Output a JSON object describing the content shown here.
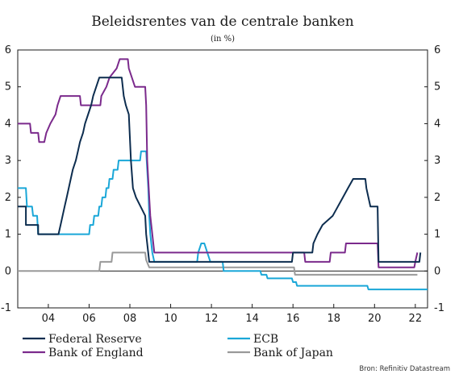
{
  "chart_data": {
    "type": "line",
    "title": "Beleidsrentes van de centrale banken",
    "subtitle": "(in %)",
    "source": "Bron: Refinitiv Datastream",
    "x_range": [
      2002.5,
      2022.6
    ],
    "x_ticks": [
      {
        "value": 2004,
        "label": "04"
      },
      {
        "value": 2006,
        "label": "06"
      },
      {
        "value": 2008,
        "label": "08"
      },
      {
        "value": 2010,
        "label": "10"
      },
      {
        "value": 2012,
        "label": "12"
      },
      {
        "value": 2014,
        "label": "14"
      },
      {
        "value": 2016,
        "label": "16"
      },
      {
        "value": 2018,
        "label": "18"
      },
      {
        "value": 2020,
        "label": "20"
      },
      {
        "value": 2022,
        "label": "22"
      }
    ],
    "ylim": [
      -1,
      6
    ],
    "y_ticks": [
      "-1",
      "0",
      "1",
      "2",
      "3",
      "4",
      "5",
      "6"
    ],
    "zero_line": true,
    "legend_position": "bottom",
    "series": [
      {
        "name": "Federal Reserve",
        "color": "#0d2d4f",
        "points": [
          [
            2002.5,
            1.75
          ],
          [
            2002.9,
            1.75
          ],
          [
            2002.9,
            1.25
          ],
          [
            2003.5,
            1.25
          ],
          [
            2003.5,
            1.0
          ],
          [
            2004.5,
            1.0
          ],
          [
            2004.6,
            1.25
          ],
          [
            2004.7,
            1.5
          ],
          [
            2004.8,
            1.75
          ],
          [
            2004.9,
            2.0
          ],
          [
            2005.0,
            2.25
          ],
          [
            2005.1,
            2.5
          ],
          [
            2005.2,
            2.75
          ],
          [
            2005.35,
            3.0
          ],
          [
            2005.45,
            3.25
          ],
          [
            2005.55,
            3.5
          ],
          [
            2005.7,
            3.75
          ],
          [
            2005.8,
            4.0
          ],
          [
            2005.95,
            4.25
          ],
          [
            2006.1,
            4.5
          ],
          [
            2006.2,
            4.75
          ],
          [
            2006.35,
            5.0
          ],
          [
            2006.5,
            5.25
          ],
          [
            2007.6,
            5.25
          ],
          [
            2007.7,
            4.75
          ],
          [
            2007.8,
            4.5
          ],
          [
            2007.95,
            4.25
          ],
          [
            2008.05,
            3.0
          ],
          [
            2008.15,
            2.25
          ],
          [
            2008.3,
            2.0
          ],
          [
            2008.75,
            1.5
          ],
          [
            2008.8,
            1.0
          ],
          [
            2008.95,
            0.25
          ],
          [
            2015.95,
            0.25
          ],
          [
            2016.0,
            0.5
          ],
          [
            2016.95,
            0.5
          ],
          [
            2017.0,
            0.75
          ],
          [
            2017.2,
            1.0
          ],
          [
            2017.45,
            1.25
          ],
          [
            2017.95,
            1.5
          ],
          [
            2018.2,
            1.75
          ],
          [
            2018.45,
            2.0
          ],
          [
            2018.7,
            2.25
          ],
          [
            2018.95,
            2.5
          ],
          [
            2019.55,
            2.5
          ],
          [
            2019.6,
            2.25
          ],
          [
            2019.7,
            2.0
          ],
          [
            2019.8,
            1.75
          ],
          [
            2020.15,
            1.75
          ],
          [
            2020.2,
            0.25
          ],
          [
            2022.2,
            0.25
          ],
          [
            2022.25,
            0.5
          ]
        ]
      },
      {
        "name": "ECB",
        "color": "#1aa7d8",
        "points": [
          [
            2002.5,
            2.25
          ],
          [
            2002.9,
            2.25
          ],
          [
            2002.95,
            1.75
          ],
          [
            2003.2,
            1.75
          ],
          [
            2003.25,
            1.5
          ],
          [
            2003.45,
            1.5
          ],
          [
            2003.5,
            1.0
          ],
          [
            2006.0,
            1.0
          ],
          [
            2006.05,
            1.25
          ],
          [
            2006.2,
            1.25
          ],
          [
            2006.25,
            1.5
          ],
          [
            2006.45,
            1.5
          ],
          [
            2006.5,
            1.75
          ],
          [
            2006.6,
            1.75
          ],
          [
            2006.65,
            2.0
          ],
          [
            2006.8,
            2.0
          ],
          [
            2006.85,
            2.25
          ],
          [
            2006.95,
            2.25
          ],
          [
            2007.0,
            2.5
          ],
          [
            2007.15,
            2.5
          ],
          [
            2007.2,
            2.75
          ],
          [
            2007.4,
            2.75
          ],
          [
            2007.45,
            3.0
          ],
          [
            2008.5,
            3.0
          ],
          [
            2008.55,
            3.25
          ],
          [
            2008.8,
            3.25
          ],
          [
            2008.85,
            2.75
          ],
          [
            2008.9,
            2.25
          ],
          [
            2008.95,
            1.5
          ],
          [
            2009.0,
            1.0
          ],
          [
            2009.1,
            0.5
          ],
          [
            2009.2,
            0.25
          ],
          [
            2011.3,
            0.25
          ],
          [
            2011.35,
            0.5
          ],
          [
            2011.5,
            0.75
          ],
          [
            2011.65,
            0.75
          ],
          [
            2011.8,
            0.5
          ],
          [
            2011.95,
            0.25
          ],
          [
            2012.55,
            0.25
          ],
          [
            2012.6,
            0.0
          ],
          [
            2014.4,
            0.0
          ],
          [
            2014.45,
            -0.1
          ],
          [
            2014.7,
            -0.1
          ],
          [
            2014.75,
            -0.2
          ],
          [
            2015.95,
            -0.2
          ],
          [
            2016.0,
            -0.3
          ],
          [
            2016.15,
            -0.3
          ],
          [
            2016.2,
            -0.4
          ],
          [
            2019.65,
            -0.4
          ],
          [
            2019.7,
            -0.5
          ],
          [
            2022.6,
            -0.5
          ]
        ]
      },
      {
        "name": "Bank of England",
        "color": "#7b2a8c",
        "points": [
          [
            2002.5,
            4.0
          ],
          [
            2003.1,
            4.0
          ],
          [
            2003.15,
            3.75
          ],
          [
            2003.5,
            3.75
          ],
          [
            2003.55,
            3.5
          ],
          [
            2003.8,
            3.5
          ],
          [
            2003.9,
            3.75
          ],
          [
            2004.1,
            4.0
          ],
          [
            2004.35,
            4.25
          ],
          [
            2004.45,
            4.5
          ],
          [
            2004.6,
            4.75
          ],
          [
            2005.55,
            4.75
          ],
          [
            2005.6,
            4.5
          ],
          [
            2006.55,
            4.5
          ],
          [
            2006.6,
            4.75
          ],
          [
            2006.85,
            5.0
          ],
          [
            2007.0,
            5.25
          ],
          [
            2007.35,
            5.5
          ],
          [
            2007.5,
            5.75
          ],
          [
            2007.9,
            5.75
          ],
          [
            2007.95,
            5.5
          ],
          [
            2008.1,
            5.25
          ],
          [
            2008.25,
            5.0
          ],
          [
            2008.75,
            5.0
          ],
          [
            2008.8,
            4.5
          ],
          [
            2008.85,
            3.0
          ],
          [
            2008.95,
            2.0
          ],
          [
            2009.0,
            1.5
          ],
          [
            2009.1,
            1.0
          ],
          [
            2009.2,
            0.5
          ],
          [
            2016.55,
            0.5
          ],
          [
            2016.6,
            0.25
          ],
          [
            2017.8,
            0.25
          ],
          [
            2017.85,
            0.5
          ],
          [
            2018.55,
            0.5
          ],
          [
            2018.6,
            0.75
          ],
          [
            2020.15,
            0.75
          ],
          [
            2020.2,
            0.1
          ],
          [
            2021.95,
            0.1
          ],
          [
            2022.0,
            0.25
          ],
          [
            2022.1,
            0.5
          ]
        ]
      },
      {
        "name": "Bank of Japan",
        "color": "#999999",
        "points": [
          [
            2002.5,
            0.0
          ],
          [
            2006.5,
            0.0
          ],
          [
            2006.55,
            0.25
          ],
          [
            2007.1,
            0.25
          ],
          [
            2007.15,
            0.5
          ],
          [
            2008.75,
            0.5
          ],
          [
            2008.8,
            0.3
          ],
          [
            2008.95,
            0.1
          ],
          [
            2016.05,
            0.1
          ],
          [
            2016.1,
            -0.1
          ],
          [
            2022.1,
            -0.1
          ]
        ]
      }
    ]
  }
}
